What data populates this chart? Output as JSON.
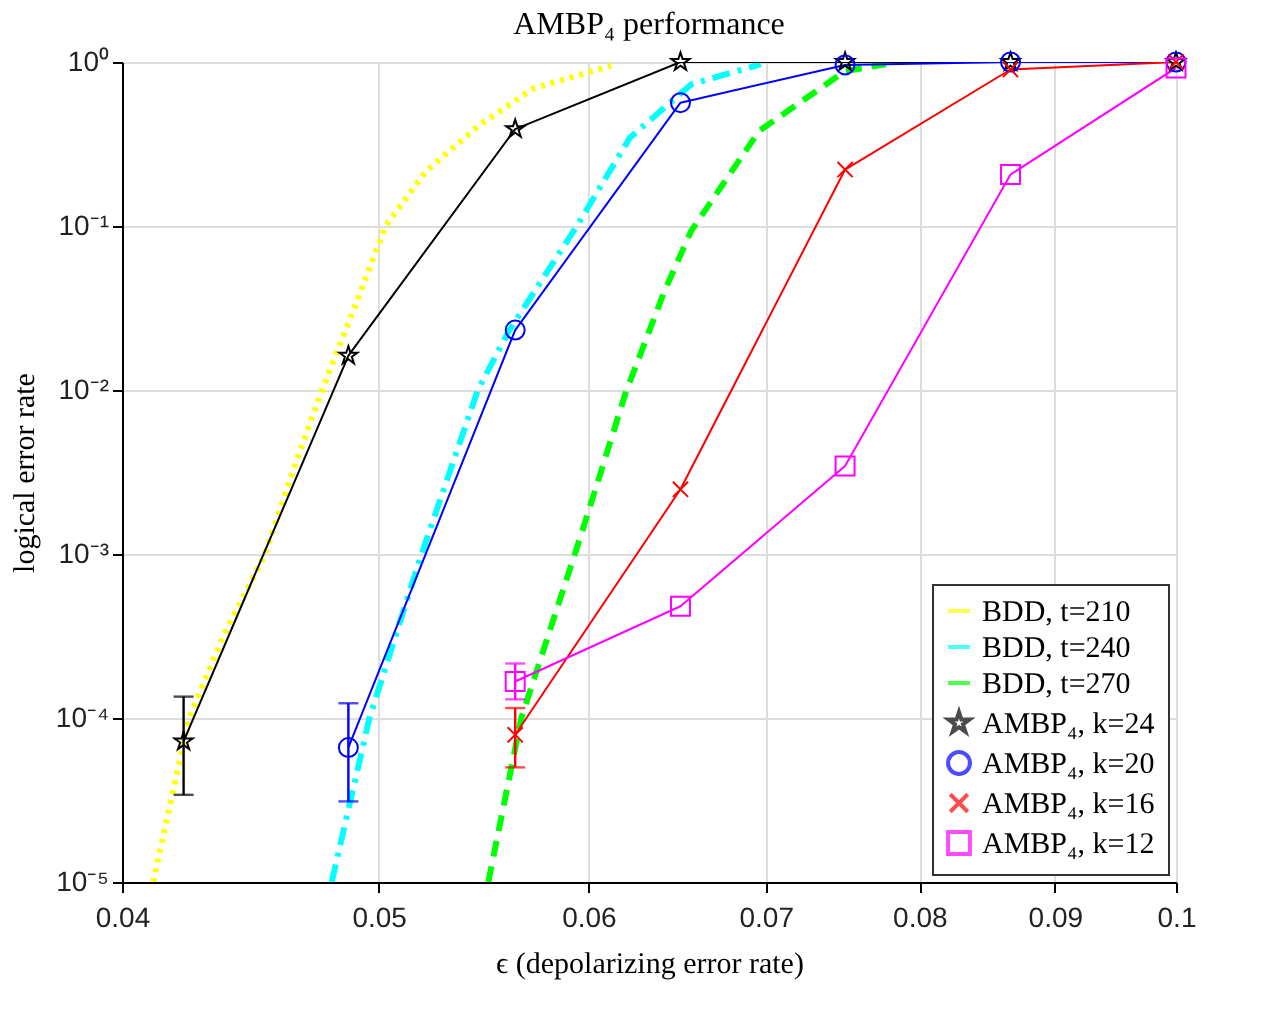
{
  "chart_data": {
    "type": "line",
    "title": "AMBP₄ performance",
    "xlabel": "ϵ (depolarizing error rate)",
    "ylabel": "logical error rate",
    "log": "xy",
    "grid": true,
    "legend": "bottom right",
    "xlim": [
      0.04,
      0.1
    ],
    "xticks": [
      0.04,
      0.05,
      0.06,
      0.07,
      0.08,
      0.09,
      0.1
    ],
    "ylim": [
      1e-05,
      1
    ],
    "yticks": [
      {
        "value": 1e-05,
        "label": "10⁻⁵"
      },
      {
        "value": 0.0001,
        "label": "10⁻⁴"
      },
      {
        "value": 0.001,
        "label": "10⁻³"
      },
      {
        "value": 0.01,
        "label": "10⁻²"
      },
      {
        "value": 0.1,
        "label": "10⁻¹"
      },
      {
        "value": 1,
        "label": "10⁰"
      }
    ],
    "series": [
      {
        "name": "BDD, t=210",
        "color": "#ffff00",
        "marker": "none",
        "line_style": "dotted",
        "x": [
          0.0411,
          0.0424,
          0.0437,
          0.0453,
          0.0464,
          0.0476,
          0.049,
          0.0503,
          0.0521,
          0.0546,
          0.0572,
          0.0612
        ],
        "values": [
          1e-05,
          0.0001,
          0.00032,
          0.001,
          0.0032,
          0.01,
          0.033,
          0.1,
          0.216,
          0.415,
          0.69,
          0.95
        ]
      },
      {
        "name": "BDD, t=240",
        "color": "#00ffff",
        "marker": "none",
        "line_style": "dashdot",
        "x": [
          0.048,
          0.0496,
          0.0519,
          0.0545,
          0.056,
          0.0594,
          0.0622,
          0.0656,
          0.0697
        ],
        "values": [
          1e-05,
          0.0001,
          0.001,
          0.01,
          0.023,
          0.1,
          0.345,
          0.73,
          0.97
        ]
      },
      {
        "name": "BDD, t=270",
        "color": "#00ff00",
        "marker": "none",
        "line_style": "dashed",
        "x": [
          0.055,
          0.0566,
          0.0597,
          0.062,
          0.0641,
          0.0656,
          0.0696,
          0.075,
          0.0777
        ],
        "values": [
          1e-05,
          0.0001,
          0.0014,
          0.0098,
          0.04,
          0.093,
          0.38,
          0.88,
          0.97
        ]
      },
      {
        "name": "AMBP₄, k=24",
        "color": "#000000",
        "marker": "star",
        "line_style": "solid",
        "x": [
          0.0422,
          0.0487,
          0.0563,
          0.065,
          0.075,
          0.0866,
          0.1
        ],
        "values": [
          7.2e-05,
          0.0162,
          0.39,
          1,
          1,
          1,
          1
        ],
        "errors": [
          [
            3.4e-05,
            0.000135
          ],
          null,
          null,
          null,
          null,
          null,
          null
        ]
      },
      {
        "name": "AMBP₄, k=20",
        "color": "#0000ff",
        "marker": "circle",
        "line_style": "solid",
        "x": [
          0.0487,
          0.0563,
          0.065,
          0.075,
          0.0866,
          0.1
        ],
        "values": [
          6.6e-05,
          0.0232,
          0.565,
          0.96,
          1,
          1
        ],
        "errors": [
          [
            3.1e-05,
            0.000123
          ],
          null,
          null,
          null,
          null,
          null
        ]
      },
      {
        "name": "AMBP₄, k=16",
        "color": "#ff0000",
        "marker": "cross",
        "line_style": "solid",
        "x": [
          0.0563,
          0.065,
          0.075,
          0.0866,
          0.1
        ],
        "values": [
          7.9e-05,
          0.00248,
          0.221,
          0.9,
          1
        ],
        "errors": [
          [
            5e-05,
            0.000115
          ],
          null,
          null,
          null,
          null
        ]
      },
      {
        "name": "AMBP₄, k=12",
        "color": "#ff00ff",
        "marker": "square",
        "line_style": "solid",
        "x": [
          0.0563,
          0.065,
          0.075,
          0.0866,
          0.1
        ],
        "values": [
          0.000167,
          0.00048,
          0.00344,
          0.206,
          0.92
        ],
        "errors": [
          [
            0.00013,
            0.000215
          ],
          null,
          null,
          null,
          null
        ]
      }
    ]
  }
}
